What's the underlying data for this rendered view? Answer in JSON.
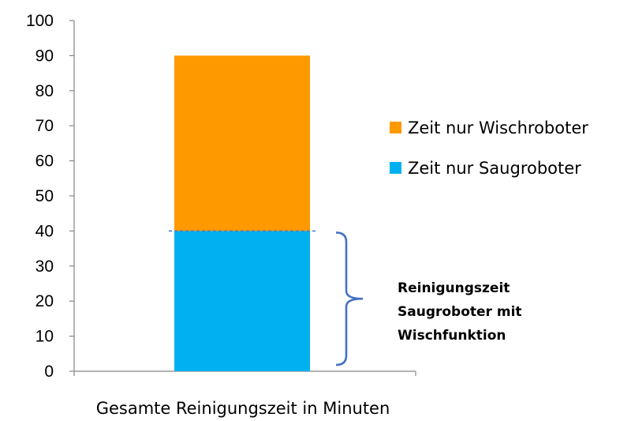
{
  "chart_data": {
    "type": "bar",
    "stacked": true,
    "categories": [
      "Gesamte Reinigungszeit in Minuten"
    ],
    "series": [
      {
        "name": "Zeit nur Saugroboter",
        "values": [
          40
        ],
        "color": "#00b0f0"
      },
      {
        "name": "Zeit nur Wischroboter",
        "values": [
          50
        ],
        "color": "#ff9900"
      }
    ],
    "xlabel": "Gesamte Reinigungszeit in Minuten",
    "ylabel": "",
    "ylim": [
      0,
      100
    ],
    "yticks": [
      0,
      10,
      20,
      30,
      40,
      50,
      60,
      70,
      80,
      90,
      100
    ],
    "grid": false,
    "legend_position": "right",
    "legend_order": [
      "Zeit nur Wischroboter",
      "Zeit nur Saugroboter"
    ],
    "annotation": {
      "lines": [
        "Reinigungszeit",
        "Saugroboter mit",
        "Wischfunktion"
      ],
      "range": [
        0,
        40
      ],
      "bracket_color": "#4472c4",
      "dashed_line_value": 40,
      "dashed_line_color": "#4a7ebb"
    }
  }
}
